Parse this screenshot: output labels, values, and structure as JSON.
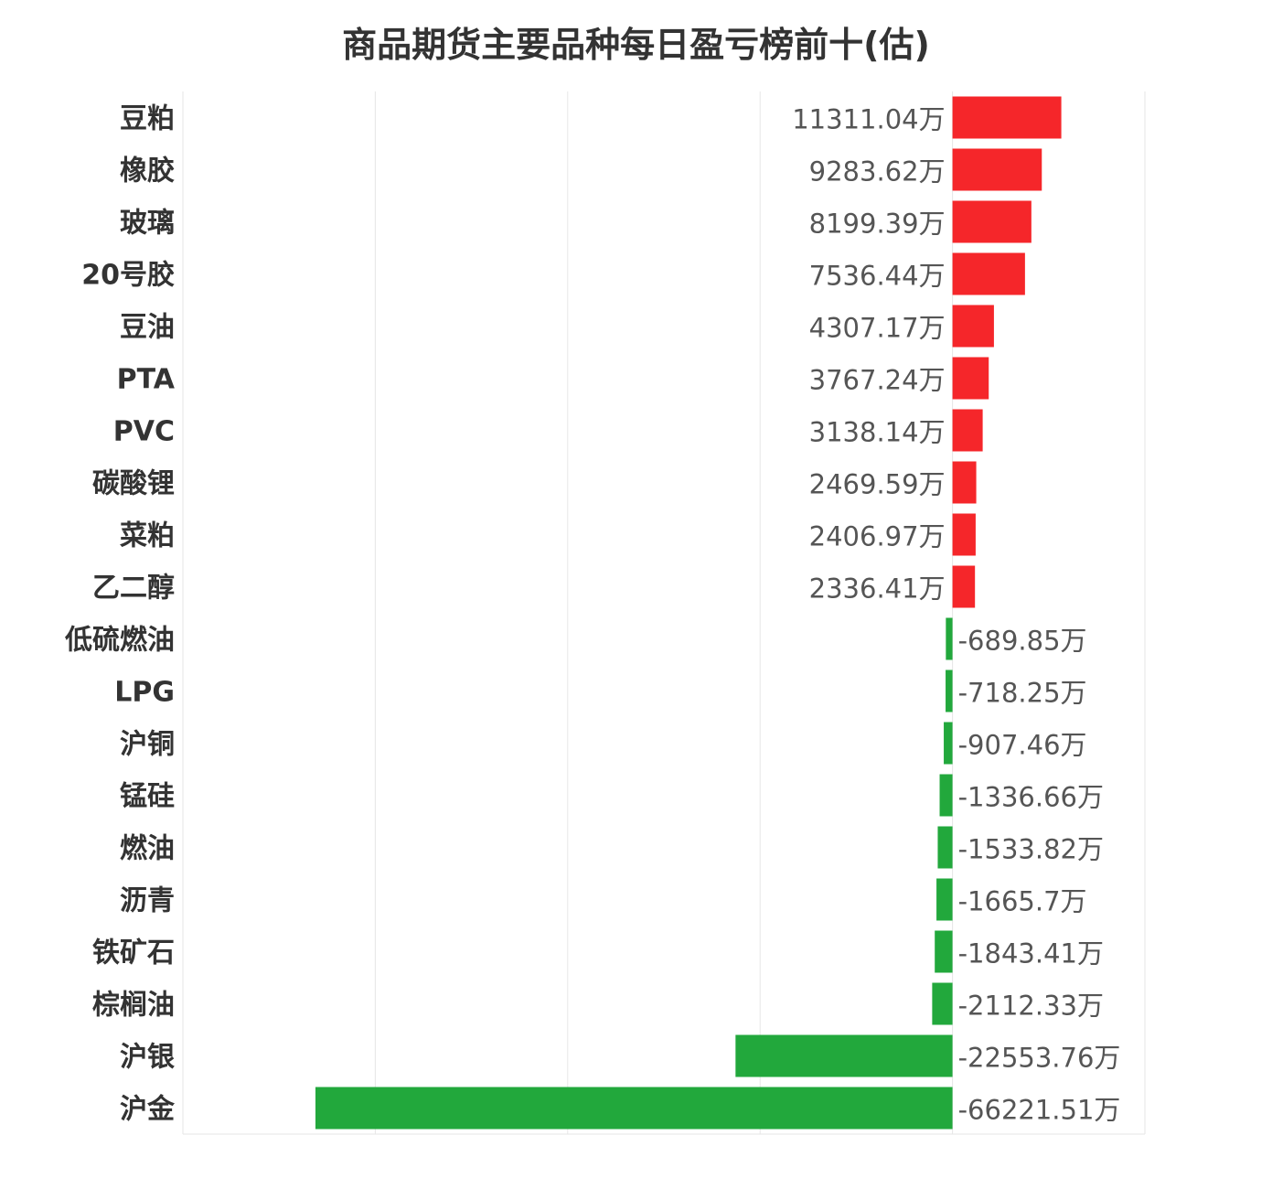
{
  "chart_data": {
    "type": "bar",
    "orientation": "horizontal",
    "title": "商品期货主要品种每日盈亏榜前十(估)",
    "value_suffix": "万",
    "categories": [
      "豆粕",
      "橡胶",
      "玻璃",
      "20号胶",
      "豆油",
      "PTA",
      "PVC",
      "碳酸锂",
      "菜粕",
      "乙二醇",
      "低硫燃油",
      "LPG",
      "沪铜",
      "锰硅",
      "燃油",
      "沥青",
      "铁矿石",
      "棕榈油",
      "沪银",
      "沪金"
    ],
    "values": [
      11311.04,
      9283.62,
      8199.39,
      7536.44,
      4307.17,
      3767.24,
      3138.14,
      2469.59,
      2406.97,
      2336.41,
      -689.85,
      -718.25,
      -907.46,
      -1336.66,
      -1533.82,
      -1665.7,
      -1843.41,
      -2112.33,
      -22553.76,
      -66221.51
    ],
    "value_labels": [
      "11311.04万",
      "9283.62万",
      "8199.39万",
      "7536.44万",
      "4307.17万",
      "3767.24万",
      "3138.14万",
      "2469.59万",
      "2406.97万",
      "2336.41万",
      "-689.85万",
      "-718.25万",
      "-907.46万",
      "-1336.66万",
      "-1533.82万",
      "-1665.7万",
      "-1843.41万",
      "-2112.33万",
      "-22553.76万",
      "-66221.51万"
    ],
    "xlim": [
      -80000,
      20000
    ],
    "grid_step": 20000,
    "grid": true,
    "positive_color": "#f5262a",
    "negative_color": "#22a83c"
  }
}
